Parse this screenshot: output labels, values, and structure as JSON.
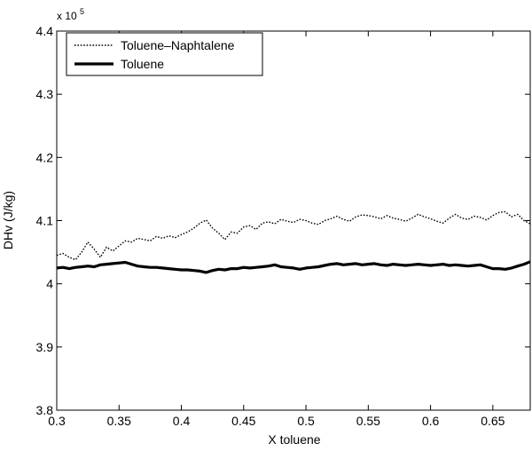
{
  "chart_data": {
    "type": "line",
    "title": "",
    "xlabel": "X toluene",
    "ylabel": "DHv (J/kg)",
    "y_multiplier": {
      "base": "x 10",
      "exponent": "5"
    },
    "xlim": [
      0.3,
      0.68
    ],
    "ylim": [
      3.8,
      4.4
    ],
    "x_ticks": [
      0.3,
      0.35,
      0.4,
      0.45,
      0.5,
      0.55,
      0.6,
      0.65
    ],
    "x_tick_labels": [
      "0.3",
      "0.35",
      "0.4",
      "0.45",
      "0.5",
      "0.55",
      "0.6",
      "0.65"
    ],
    "y_ticks": [
      3.8,
      3.9,
      4.0,
      4.1,
      4.2,
      4.3,
      4.4
    ],
    "y_tick_labels": [
      "3.8",
      "3.9",
      "4",
      "4.1",
      "4.2",
      "4.3",
      "4.4"
    ],
    "grid": false,
    "legend": "top-left",
    "series": [
      {
        "name": "Toluene–Naphtalene",
        "style": "dotted",
        "color": "#000000",
        "x": [
          0.3,
          0.305,
          0.31,
          0.315,
          0.32,
          0.325,
          0.33,
          0.335,
          0.34,
          0.345,
          0.35,
          0.355,
          0.36,
          0.365,
          0.37,
          0.375,
          0.38,
          0.385,
          0.39,
          0.395,
          0.4,
          0.405,
          0.41,
          0.415,
          0.42,
          0.425,
          0.43,
          0.435,
          0.44,
          0.445,
          0.45,
          0.455,
          0.46,
          0.465,
          0.47,
          0.475,
          0.48,
          0.485,
          0.49,
          0.495,
          0.5,
          0.505,
          0.51,
          0.515,
          0.52,
          0.525,
          0.53,
          0.535,
          0.54,
          0.545,
          0.55,
          0.555,
          0.56,
          0.565,
          0.57,
          0.575,
          0.58,
          0.585,
          0.59,
          0.595,
          0.6,
          0.605,
          0.61,
          0.615,
          0.62,
          0.625,
          0.63,
          0.635,
          0.64,
          0.645,
          0.65,
          0.655,
          0.66,
          0.665,
          0.67,
          0.675,
          0.68
        ],
        "y": [
          4.045,
          4.048,
          4.042,
          4.038,
          4.05,
          4.066,
          4.055,
          4.042,
          4.058,
          4.052,
          4.06,
          4.068,
          4.066,
          4.072,
          4.07,
          4.068,
          4.075,
          4.072,
          4.076,
          4.073,
          4.078,
          4.082,
          4.088,
          4.096,
          4.101,
          4.088,
          4.08,
          4.07,
          4.082,
          4.08,
          4.09,
          4.092,
          4.086,
          4.096,
          4.098,
          4.095,
          4.102,
          4.099,
          4.097,
          4.102,
          4.1,
          4.096,
          4.094,
          4.1,
          4.103,
          4.107,
          4.102,
          4.099,
          4.106,
          4.109,
          4.108,
          4.106,
          4.103,
          4.108,
          4.104,
          4.102,
          4.099,
          4.104,
          4.11,
          4.106,
          4.103,
          4.099,
          4.096,
          4.104,
          4.11,
          4.104,
          4.102,
          4.107,
          4.105,
          4.101,
          4.108,
          4.113,
          4.114,
          4.106,
          4.11,
          4.1,
          4.095
        ]
      },
      {
        "name": "Toluene",
        "style": "solid-thick",
        "color": "#000000",
        "x": [
          0.3,
          0.305,
          0.31,
          0.315,
          0.32,
          0.325,
          0.33,
          0.335,
          0.34,
          0.345,
          0.35,
          0.355,
          0.36,
          0.365,
          0.37,
          0.375,
          0.38,
          0.385,
          0.39,
          0.395,
          0.4,
          0.405,
          0.41,
          0.415,
          0.42,
          0.425,
          0.43,
          0.435,
          0.44,
          0.445,
          0.45,
          0.455,
          0.46,
          0.465,
          0.47,
          0.475,
          0.48,
          0.485,
          0.49,
          0.495,
          0.5,
          0.505,
          0.51,
          0.515,
          0.52,
          0.525,
          0.53,
          0.535,
          0.54,
          0.545,
          0.55,
          0.555,
          0.56,
          0.565,
          0.57,
          0.575,
          0.58,
          0.585,
          0.59,
          0.595,
          0.6,
          0.605,
          0.61,
          0.615,
          0.62,
          0.625,
          0.63,
          0.635,
          0.64,
          0.645,
          0.65,
          0.655,
          0.66,
          0.665,
          0.67,
          0.675,
          0.68
        ],
        "y": [
          4.025,
          4.026,
          4.024,
          4.026,
          4.027,
          4.028,
          4.027,
          4.03,
          4.031,
          4.032,
          4.033,
          4.034,
          4.031,
          4.028,
          4.027,
          4.026,
          4.026,
          4.025,
          4.024,
          4.023,
          4.022,
          4.022,
          4.021,
          4.02,
          4.018,
          4.021,
          4.023,
          4.022,
          4.024,
          4.024,
          4.026,
          4.025,
          4.026,
          4.027,
          4.028,
          4.03,
          4.027,
          4.026,
          4.025,
          4.023,
          4.025,
          4.026,
          4.027,
          4.029,
          4.031,
          4.032,
          4.03,
          4.031,
          4.032,
          4.03,
          4.031,
          4.032,
          4.03,
          4.029,
          4.031,
          4.03,
          4.029,
          4.03,
          4.031,
          4.03,
          4.029,
          4.03,
          4.031,
          4.029,
          4.03,
          4.029,
          4.028,
          4.029,
          4.03,
          4.027,
          4.024,
          4.024,
          4.023,
          4.025,
          4.028,
          4.031,
          4.035
        ]
      }
    ]
  }
}
